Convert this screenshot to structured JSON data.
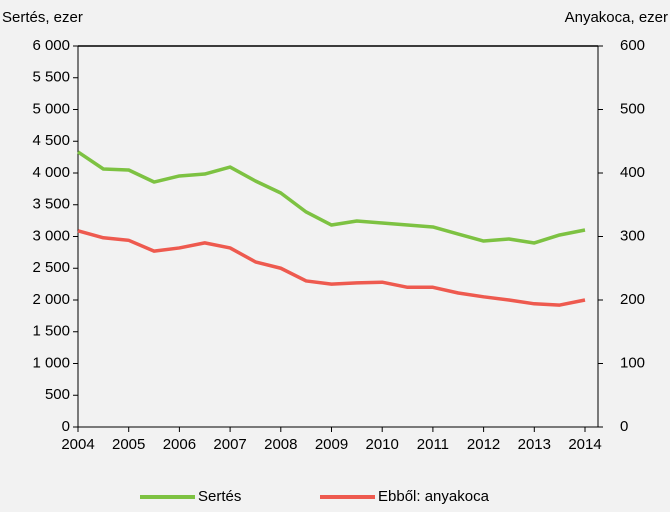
{
  "chart_data": {
    "type": "line",
    "y_label": "Sertés, ezer",
    "y2_label": "Anyakoca, ezer",
    "x": [
      2004,
      2004.5,
      2005,
      2005.5,
      2006,
      2006.5,
      2007,
      2007.5,
      2008,
      2008.5,
      2009,
      2009.5,
      2010,
      2010.5,
      2011,
      2011.5,
      2012,
      2012.5,
      2013,
      2013.5,
      2014
    ],
    "xlim": [
      2004,
      2014
    ],
    "xticks": [
      2004,
      2005,
      2006,
      2007,
      2008,
      2009,
      2010,
      2011,
      2012,
      2013,
      2014
    ],
    "ylim": [
      0,
      6000
    ],
    "yticks": [
      0,
      500,
      {
        "value": 1000,
        "label": "1 000"
      },
      {
        "value": 1500,
        "label": "1 500"
      },
      {
        "value": 2000,
        "label": "2 000"
      },
      {
        "value": 2500,
        "label": "2 500"
      },
      {
        "value": 3000,
        "label": "3 000"
      },
      {
        "value": 3500,
        "label": "3 500"
      },
      {
        "value": 4000,
        "label": "4 000"
      },
      {
        "value": 4500,
        "label": "4 500"
      },
      {
        "value": 5000,
        "label": "5 000"
      },
      {
        "value": 5500,
        "label": "5 500"
      },
      {
        "value": 6000,
        "label": "6 000"
      }
    ],
    "y2lim": [
      0,
      600
    ],
    "y2ticks": [
      0,
      100,
      200,
      300,
      400,
      500,
      600
    ],
    "legend": "bottom",
    "series": [
      {
        "name": "Sertés",
        "color": "#7dc242",
        "values": [
          4331,
          4063,
          4047,
          3858,
          3953,
          3984,
          4094,
          3874,
          3685,
          3386,
          3181,
          3244,
          3213,
          3181,
          3150,
          3039,
          2929,
          2961,
          2898,
          3024,
          3102
        ]
      },
      {
        "name": "Ebből: anyakoca",
        "color": "#ee5a4f",
        "axis": "y2",
        "values": [
          309,
          298,
          294,
          277,
          282,
          290,
          282,
          260,
          250,
          230,
          225,
          227,
          228,
          220,
          220,
          211,
          205,
          200,
          194,
          192,
          200
        ]
      }
    ]
  }
}
